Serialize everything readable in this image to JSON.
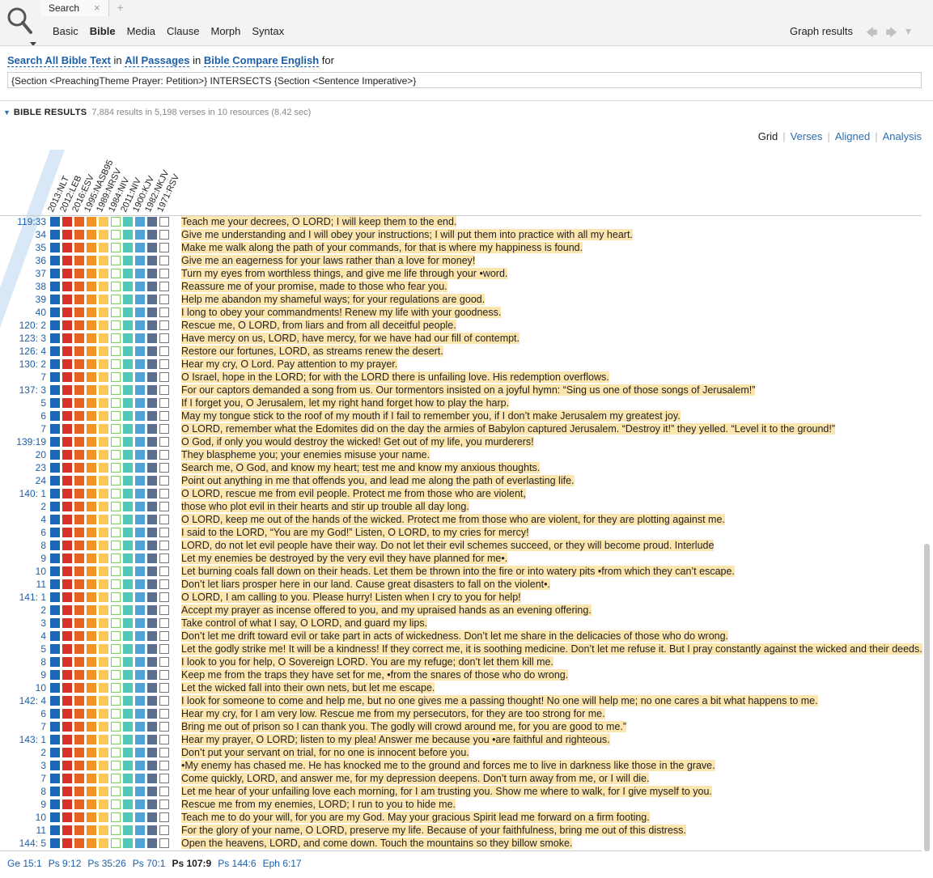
{
  "tab": {
    "label": "Search"
  },
  "modes": [
    "Basic",
    "Bible",
    "Media",
    "Clause",
    "Morph",
    "Syntax"
  ],
  "active_mode": "Bible",
  "graph_label": "Graph results",
  "scope": {
    "a": "Search All Bible Text",
    "in1": "in",
    "b": "All Passages",
    "in2": "in",
    "c": "Bible Compare English",
    "for": "for"
  },
  "query": "{Section <PreachingTheme Prayer: Petition>} INTERSECTS {Section <Sentence Imperative>}",
  "results": {
    "title": "BIBLE RESULTS",
    "count": "7,884 results in 5,198 verses in 10 resources (8.42 sec)"
  },
  "views": [
    "Grid",
    "Verses",
    "Aligned",
    "Analysis"
  ],
  "columns": [
    "2013:NLT",
    "2012:LEB",
    "2016:ESV",
    "1995:NASB95",
    "1989:NRSV",
    "1984:NIV",
    "2011:NIV",
    "1900:KJV",
    "1982:NKJV",
    "1971:RSV"
  ],
  "column_colors": [
    "#1b67b5",
    "#d7322a",
    "#e8621f",
    "#f49425",
    "#f9c856",
    "",
    "#52c9b7",
    "#4fa3d7",
    "#5b6f90",
    ""
  ],
  "verses": [
    {
      "ref": "119:33",
      "fill": [
        1,
        1,
        1,
        1,
        1,
        0,
        1,
        1,
        1,
        0
      ],
      "text": "Teach me your decrees, O LORD; I will keep them to the end."
    },
    {
      "ref": "34",
      "fill": [
        1,
        1,
        1,
        1,
        1,
        0,
        1,
        1,
        1,
        0
      ],
      "text": "Give me understanding and I will obey your instructions; I will put them into practice with all my heart."
    },
    {
      "ref": "35",
      "fill": [
        1,
        1,
        1,
        1,
        1,
        0,
        1,
        1,
        1,
        0
      ],
      "text": "Make me walk along the path of your commands, for that is where my happiness is found."
    },
    {
      "ref": "36",
      "fill": [
        1,
        1,
        1,
        1,
        1,
        0,
        1,
        1,
        1,
        0
      ],
      "text": "Give me an eagerness for your laws rather than a love for money!"
    },
    {
      "ref": "37",
      "fill": [
        1,
        1,
        1,
        1,
        1,
        0,
        1,
        1,
        1,
        0
      ],
      "text": "Turn my eyes from worthless things, and give me life through your •word."
    },
    {
      "ref": "38",
      "fill": [
        1,
        1,
        1,
        1,
        1,
        0,
        1,
        1,
        1,
        0
      ],
      "text": "Reassure me of your promise, made to those who fear you."
    },
    {
      "ref": "39",
      "fill": [
        1,
        1,
        1,
        1,
        1,
        0,
        1,
        1,
        1,
        0
      ],
      "text": "Help me abandon my shameful ways; for your regulations are good."
    },
    {
      "ref": "40",
      "fill": [
        1,
        1,
        1,
        1,
        1,
        0,
        1,
        1,
        1,
        0
      ],
      "text": "I long to obey your commandments! Renew my life with your goodness."
    },
    {
      "ref": "120: 2",
      "fill": [
        1,
        1,
        1,
        1,
        1,
        0,
        1,
        1,
        1,
        0
      ],
      "text": "Rescue me, O LORD, from liars and from all deceitful people."
    },
    {
      "ref": "123: 3",
      "fill": [
        1,
        1,
        1,
        1,
        1,
        0,
        1,
        1,
        1,
        0
      ],
      "text": "Have mercy on us, LORD, have mercy, for we have had our fill of contempt."
    },
    {
      "ref": "126: 4",
      "fill": [
        1,
        1,
        1,
        1,
        1,
        0,
        1,
        1,
        1,
        0
      ],
      "text": "Restore our fortunes, LORD, as streams renew the desert."
    },
    {
      "ref": "130: 2",
      "fill": [
        1,
        1,
        1,
        1,
        1,
        0,
        1,
        1,
        1,
        0
      ],
      "text": "Hear my cry, O Lord. Pay attention to my prayer."
    },
    {
      "ref": "7",
      "fill": [
        1,
        1,
        1,
        1,
        1,
        0,
        1,
        1,
        1,
        0
      ],
      "text": "O Israel, hope in the LORD; for with the LORD there is unfailing love. His redemption overflows."
    },
    {
      "ref": "137: 3",
      "fill": [
        1,
        1,
        1,
        1,
        1,
        0,
        1,
        1,
        1,
        0
      ],
      "text": "For our captors demanded a song from us. Our tormentors insisted on a joyful hymn: “Sing us one of those songs of Jerusalem!”"
    },
    {
      "ref": "5",
      "fill": [
        1,
        1,
        1,
        1,
        1,
        0,
        1,
        1,
        1,
        0
      ],
      "text": "If I forget you, O Jerusalem, let my right hand forget how to play the harp."
    },
    {
      "ref": "6",
      "fill": [
        1,
        1,
        1,
        1,
        1,
        0,
        1,
        1,
        1,
        0
      ],
      "text": "May my tongue stick to the roof of my mouth if I fail to remember you, if I don’t make Jerusalem my greatest joy."
    },
    {
      "ref": "7",
      "fill": [
        1,
        1,
        1,
        1,
        1,
        0,
        1,
        1,
        1,
        0
      ],
      "text": "O LORD, remember what the Edomites did on the day the armies of Babylon captured Jerusalem. “Destroy it!” they yelled. “Level it to the ground!”"
    },
    {
      "ref": "139:19",
      "fill": [
        1,
        1,
        1,
        1,
        1,
        0,
        1,
        1,
        1,
        0
      ],
      "text": "O God, if only you would destroy the wicked! Get out of my life, you murderers!"
    },
    {
      "ref": "20",
      "fill": [
        1,
        1,
        1,
        1,
        1,
        0,
        1,
        1,
        1,
        0
      ],
      "text": "They blaspheme you; your enemies misuse your name."
    },
    {
      "ref": "23",
      "fill": [
        1,
        1,
        1,
        1,
        1,
        0,
        1,
        1,
        1,
        0
      ],
      "text": "Search me, O God, and know my heart; test me and know my anxious thoughts."
    },
    {
      "ref": "24",
      "fill": [
        1,
        1,
        1,
        1,
        1,
        0,
        1,
        1,
        1,
        0
      ],
      "text": "Point out anything in me that offends you, and lead me along the path of everlasting life."
    },
    {
      "ref": "140: 1",
      "fill": [
        1,
        1,
        1,
        1,
        1,
        0,
        1,
        1,
        1,
        0
      ],
      "text": "O LORD, rescue me from evil people. Protect me from those who are violent,"
    },
    {
      "ref": "2",
      "fill": [
        1,
        1,
        1,
        1,
        1,
        0,
        1,
        1,
        1,
        0
      ],
      "text": "those who plot evil in their hearts and stir up trouble all day long."
    },
    {
      "ref": "4",
      "fill": [
        1,
        1,
        1,
        1,
        1,
        0,
        1,
        1,
        1,
        0
      ],
      "text": "O LORD, keep me out of the hands of the wicked. Protect me from those who are violent, for they are plotting against me."
    },
    {
      "ref": "6",
      "fill": [
        1,
        1,
        1,
        1,
        1,
        0,
        1,
        1,
        1,
        0
      ],
      "text": "I said to the LORD, “You are my God!” Listen, O LORD, to my cries for mercy!"
    },
    {
      "ref": "8",
      "fill": [
        1,
        1,
        1,
        1,
        1,
        0,
        1,
        1,
        1,
        0
      ],
      "text": "LORD, do not let evil people have their way. Do not let their evil schemes succeed, or they will become proud. Interlude"
    },
    {
      "ref": "9",
      "fill": [
        1,
        1,
        1,
        1,
        1,
        0,
        1,
        1,
        1,
        0
      ],
      "text": "Let my enemies be destroyed by the very evil they have planned for me•."
    },
    {
      "ref": "10",
      "fill": [
        1,
        1,
        1,
        1,
        1,
        0,
        1,
        1,
        1,
        0
      ],
      "text": "Let burning coals fall down on their heads. Let them be thrown into the fire or into watery pits •from which they can’t escape."
    },
    {
      "ref": "11",
      "fill": [
        1,
        1,
        1,
        1,
        1,
        0,
        1,
        1,
        1,
        0
      ],
      "text": "Don’t let liars prosper here in our land. Cause great disasters to fall on the violent•."
    },
    {
      "ref": "141: 1",
      "fill": [
        1,
        1,
        1,
        1,
        1,
        0,
        1,
        1,
        1,
        0
      ],
      "text": "O LORD, I am calling to you. Please hurry! Listen when I cry to you for help!"
    },
    {
      "ref": "2",
      "fill": [
        1,
        1,
        1,
        1,
        1,
        0,
        1,
        1,
        1,
        0
      ],
      "text": "Accept my prayer as incense offered to you, and my upraised hands as an evening offering."
    },
    {
      "ref": "3",
      "fill": [
        1,
        1,
        1,
        1,
        1,
        0,
        1,
        1,
        1,
        0
      ],
      "text": "Take control of what I say, O LORD, and guard my lips."
    },
    {
      "ref": "4",
      "fill": [
        1,
        1,
        1,
        1,
        1,
        0,
        1,
        1,
        1,
        0
      ],
      "text": "Don’t let me drift toward evil or take part in acts of wickedness. Don’t let me share in the delicacies of those who do wrong."
    },
    {
      "ref": "5",
      "fill": [
        1,
        1,
        1,
        1,
        1,
        0,
        1,
        1,
        1,
        0
      ],
      "text": "Let the godly strike me! It will be a kindness! If they correct me, it is soothing medicine. Don’t let me refuse it. But I pray constantly against the wicked and their deeds."
    },
    {
      "ref": "8",
      "fill": [
        1,
        1,
        1,
        1,
        1,
        0,
        1,
        1,
        1,
        0
      ],
      "text": "I look to you for help, O Sovereign LORD. You are my refuge; don’t let them kill me."
    },
    {
      "ref": "9",
      "fill": [
        1,
        1,
        1,
        1,
        1,
        0,
        1,
        1,
        1,
        0
      ],
      "text": "Keep me from the traps they have set for me, •from the snares of those who do wrong."
    },
    {
      "ref": "10",
      "fill": [
        1,
        1,
        1,
        1,
        1,
        0,
        1,
        1,
        1,
        0
      ],
      "text": "Let the wicked fall into their own nets, but let me escape."
    },
    {
      "ref": "142: 4",
      "fill": [
        1,
        1,
        1,
        1,
        1,
        0,
        1,
        1,
        1,
        0
      ],
      "text": "I look for someone to come and help me, but no one gives me a passing thought! No one will help me; no one cares a bit what happens to me."
    },
    {
      "ref": "6",
      "fill": [
        1,
        1,
        1,
        1,
        1,
        0,
        1,
        1,
        1,
        0
      ],
      "text": "Hear my cry, for I am very low. Rescue me from my persecutors, for they are too strong for me."
    },
    {
      "ref": "7",
      "fill": [
        1,
        1,
        1,
        1,
        1,
        0,
        1,
        1,
        1,
        0
      ],
      "text": "Bring me out of prison so I can thank you. The godly will crowd around me, for you are good to me.”"
    },
    {
      "ref": "143: 1",
      "fill": [
        1,
        1,
        1,
        1,
        1,
        0,
        1,
        1,
        1,
        0
      ],
      "text": "Hear my prayer, O LORD; listen to my plea! Answer me because you •are faithful and righteous."
    },
    {
      "ref": "2",
      "fill": [
        1,
        1,
        1,
        1,
        1,
        0,
        1,
        1,
        1,
        0
      ],
      "text": "Don’t put your servant on trial, for no one is innocent before you."
    },
    {
      "ref": "3",
      "fill": [
        1,
        1,
        1,
        1,
        1,
        0,
        1,
        1,
        1,
        0
      ],
      "text": "•My enemy has chased me. He has knocked me to the ground and forces me to live in darkness like those in the grave."
    },
    {
      "ref": "7",
      "fill": [
        1,
        1,
        1,
        1,
        1,
        0,
        1,
        1,
        1,
        0
      ],
      "text": "Come quickly, LORD, and answer me, for my depression deepens. Don’t turn away from me, or I will die."
    },
    {
      "ref": "8",
      "fill": [
        1,
        1,
        1,
        1,
        1,
        0,
        1,
        1,
        1,
        0
      ],
      "text": "Let me hear of your unfailing love each morning, for I am trusting you. Show me where to walk, for I give myself to you."
    },
    {
      "ref": "9",
      "fill": [
        1,
        1,
        1,
        1,
        1,
        0,
        1,
        1,
        1,
        0
      ],
      "text": "Rescue me from my enemies, LORD; I run to you to hide me."
    },
    {
      "ref": "10",
      "fill": [
        1,
        1,
        1,
        1,
        1,
        0,
        1,
        1,
        1,
        0
      ],
      "text": "Teach me to do your will, for you are my God. May your gracious Spirit lead me forward on a firm footing."
    },
    {
      "ref": "11",
      "fill": [
        1,
        1,
        1,
        1,
        1,
        0,
        1,
        1,
        1,
        0
      ],
      "text": "For the glory of your name, O LORD, preserve my life. Because of your faithfulness, bring me out of this distress."
    },
    {
      "ref": "144: 5",
      "fill": [
        1,
        1,
        1,
        1,
        1,
        0,
        1,
        1,
        1,
        0
      ],
      "text": "Open the heavens, LORD, and come down. Touch the mountains so they billow smoke."
    }
  ],
  "favorites": [
    "Ge 15:1",
    "Ps 9:12",
    "Ps 35:26",
    "Ps 70:1",
    "Ps 107:9",
    "Ps 144:6",
    "Eph 6:17"
  ],
  "current_favorite": "Ps 107:9"
}
